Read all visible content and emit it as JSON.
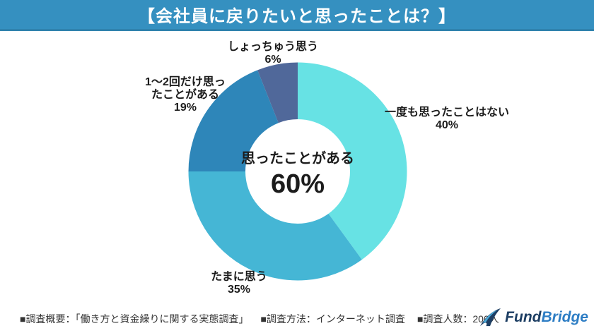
{
  "header": {
    "title": "【会社員に戻りたいと思ったことは？】"
  },
  "chart_data": {
    "type": "pie",
    "subtype": "donut",
    "title": "【会社員に戻りたいと思ったことは？】",
    "start_angle_deg": 0,
    "direction": "clockwise",
    "center_label": "思ったことがある",
    "center_value": "60%",
    "slices": [
      {
        "label": "一度も思ったことはない",
        "value": 40,
        "pct_label": "40%",
        "color": "#67e2e4",
        "label_lines": [
          "一度も思ったことはない"
        ]
      },
      {
        "label": "たまに思う",
        "value": 35,
        "pct_label": "35%",
        "color": "#45b6d5",
        "label_lines": [
          "たまに思う"
        ]
      },
      {
        "label": "1〜2回だけ思ったことがある",
        "value": 19,
        "pct_label": "19%",
        "color": "#2e86b9",
        "label_lines": [
          "1〜2回だけ思っ",
          "たことがある"
        ]
      },
      {
        "label": "しょっちゅう思う",
        "value": 6,
        "pct_label": "6%",
        "color": "#50689a",
        "label_lines": [
          "しょっちゅう思う"
        ]
      }
    ]
  },
  "footer": {
    "items": [
      "■調査概要：「働き方と資金繰りに関する実態調査」",
      "■調査方法：インターネット調査",
      "■調査人数：200人"
    ]
  },
  "logo": {
    "fund": "Fund",
    "bridge": "Bridge"
  },
  "colors": {
    "header_bg": "#3590c0",
    "header_border": "#2f82ad",
    "header_text": "#ffffff",
    "label_text": "#1c1c1c",
    "footer_text": "#333333",
    "logo_navy": "#1d3e63",
    "logo_blue": "#2d7dc4"
  }
}
